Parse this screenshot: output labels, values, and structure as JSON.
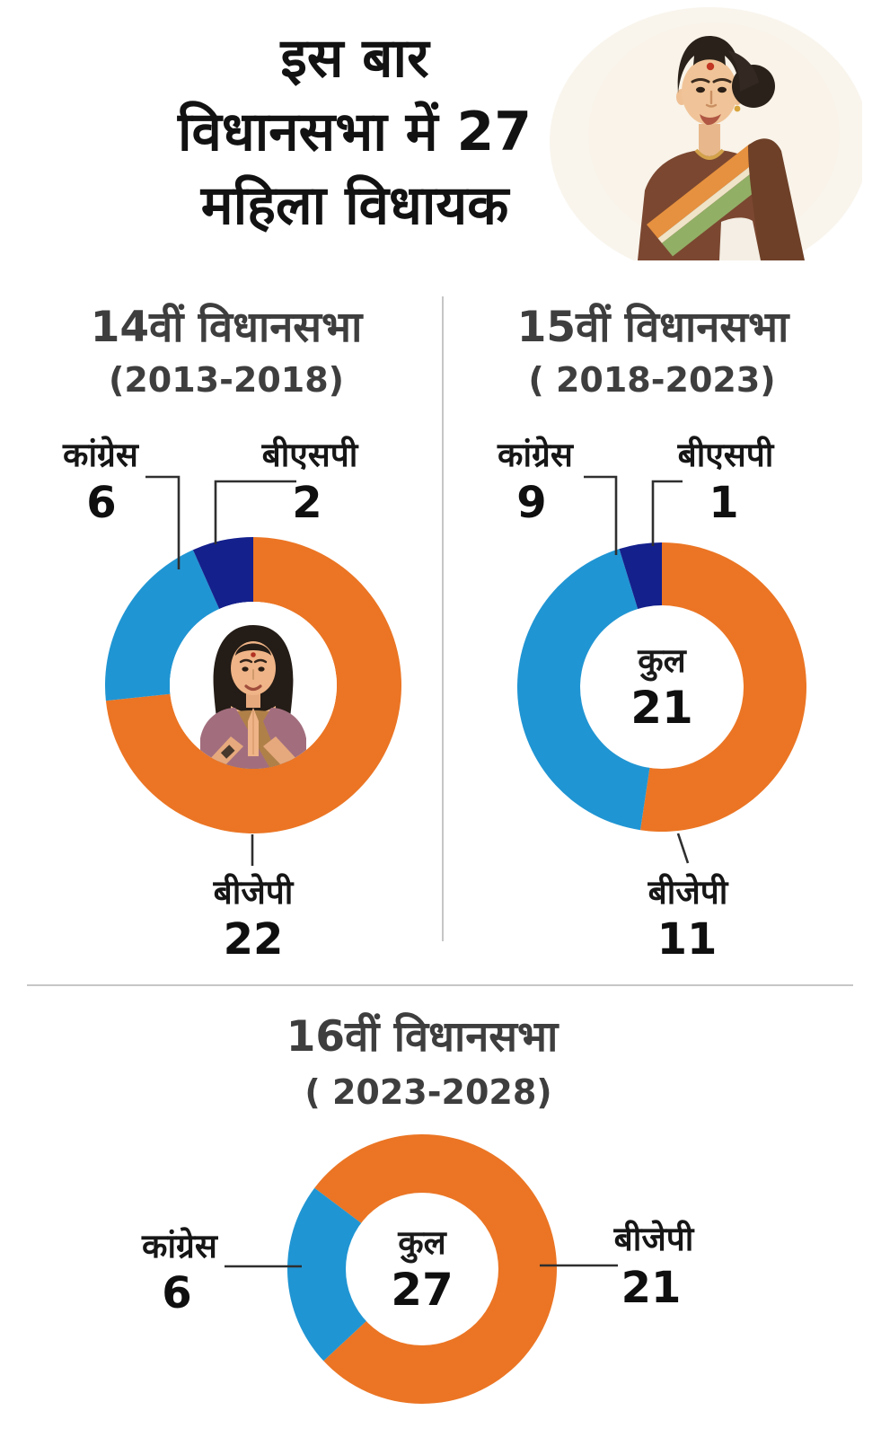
{
  "title": {
    "lines": [
      "इस बार",
      "विधानसभा में 27",
      "महिला विधायक"
    ]
  },
  "hero": {
    "alt": "woman-in-saree-illustration"
  },
  "colors": {
    "bjp": "#EB7524",
    "congress": "#2095D3",
    "bsp": "#14208C",
    "heading": "#3E3E3E",
    "text": "#141414",
    "divider": "#C6C6C6",
    "callout": "#2F2F2F"
  },
  "chart_data": [
    {
      "type": "donut",
      "title": "14वीं विधानसभा",
      "period": "(2013-2018)",
      "total": 30,
      "rotation": 0,
      "center": {
        "kind": "photo-woman-namaste",
        "label": "",
        "value": ""
      },
      "slices": [
        {
          "label": "बीजेपी",
          "value": 22,
          "color_key": "bjp"
        },
        {
          "label": "कांग्रेस",
          "value": 6,
          "color_key": "congress"
        },
        {
          "label": "बीएसपी",
          "value": 2,
          "color_key": "bsp"
        }
      ]
    },
    {
      "type": "donut",
      "title": "15वीं विधानसभा",
      "period": "( 2018-2023)",
      "total": 21,
      "rotation": 0,
      "center": {
        "kind": "text",
        "label": "कुल",
        "value": 21
      },
      "slices": [
        {
          "label": "बीजेपी",
          "value": 11,
          "color_key": "bjp"
        },
        {
          "label": "कांग्रेस",
          "value": 9,
          "color_key": "congress"
        },
        {
          "label": "बीएसपी",
          "value": 1,
          "color_key": "bsp"
        }
      ]
    },
    {
      "type": "donut",
      "title": "16वीं विधानसभा",
      "period": "( 2023-2028)",
      "total": 27,
      "rotation": 307,
      "center": {
        "kind": "text",
        "label": "कुल",
        "value": 27
      },
      "slices": [
        {
          "label": "बीजेपी",
          "value": 21,
          "color_key": "bjp"
        },
        {
          "label": "कांग्रेस",
          "value": 6,
          "color_key": "congress"
        }
      ]
    }
  ]
}
